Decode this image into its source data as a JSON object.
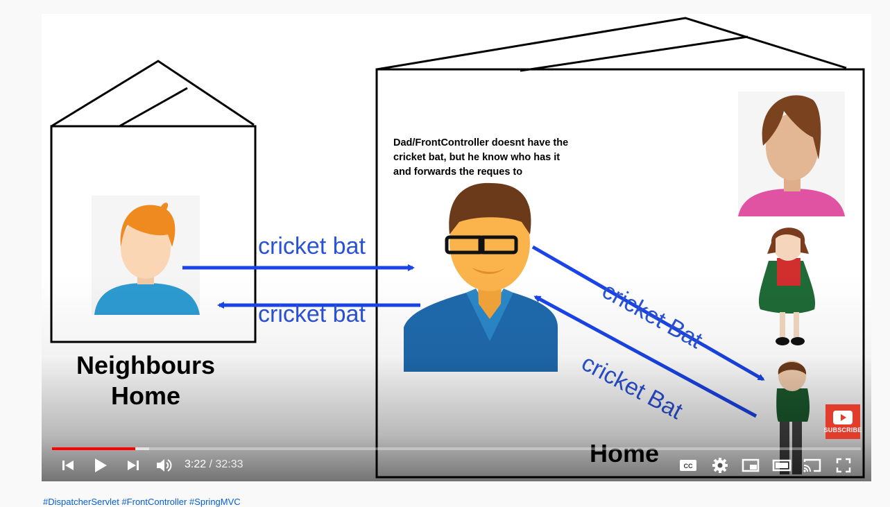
{
  "video": {
    "labels": {
      "arrow_top_left": "cricket bat",
      "arrow_bottom_left": "cricket bat",
      "arrow_top_right": "cricket Bat",
      "arrow_bottom_right": "cricket Bat",
      "neighbours_home_line1": "Neighbours",
      "neighbours_home_line2": "Home",
      "home": "Home",
      "dad_caption_line1": "Dad/FrontController doesnt have the",
      "dad_caption_line2": "cricket bat, but he know who has it",
      "dad_caption_line3": "and forwards the reques to"
    },
    "subscribe_label": "SUBSCRIBE"
  },
  "player": {
    "current_time": "3:22",
    "separator": " / ",
    "duration": "32:33",
    "progress_fraction": 0.1032,
    "buffered_fraction": 0.12,
    "accent_color": "#ff0000",
    "controls": {
      "prev": "previous-icon",
      "play": "play-icon",
      "next": "next-icon",
      "volume": "volume-icon",
      "captions": "captions-icon",
      "settings": "settings-icon",
      "miniplayer": "miniplayer-icon",
      "theater": "theater-icon",
      "cast": "cast-icon",
      "fullscreen": "fullscreen-icon"
    }
  },
  "hashtags": "#DispatcherServlet #FrontController #SpringMVC"
}
